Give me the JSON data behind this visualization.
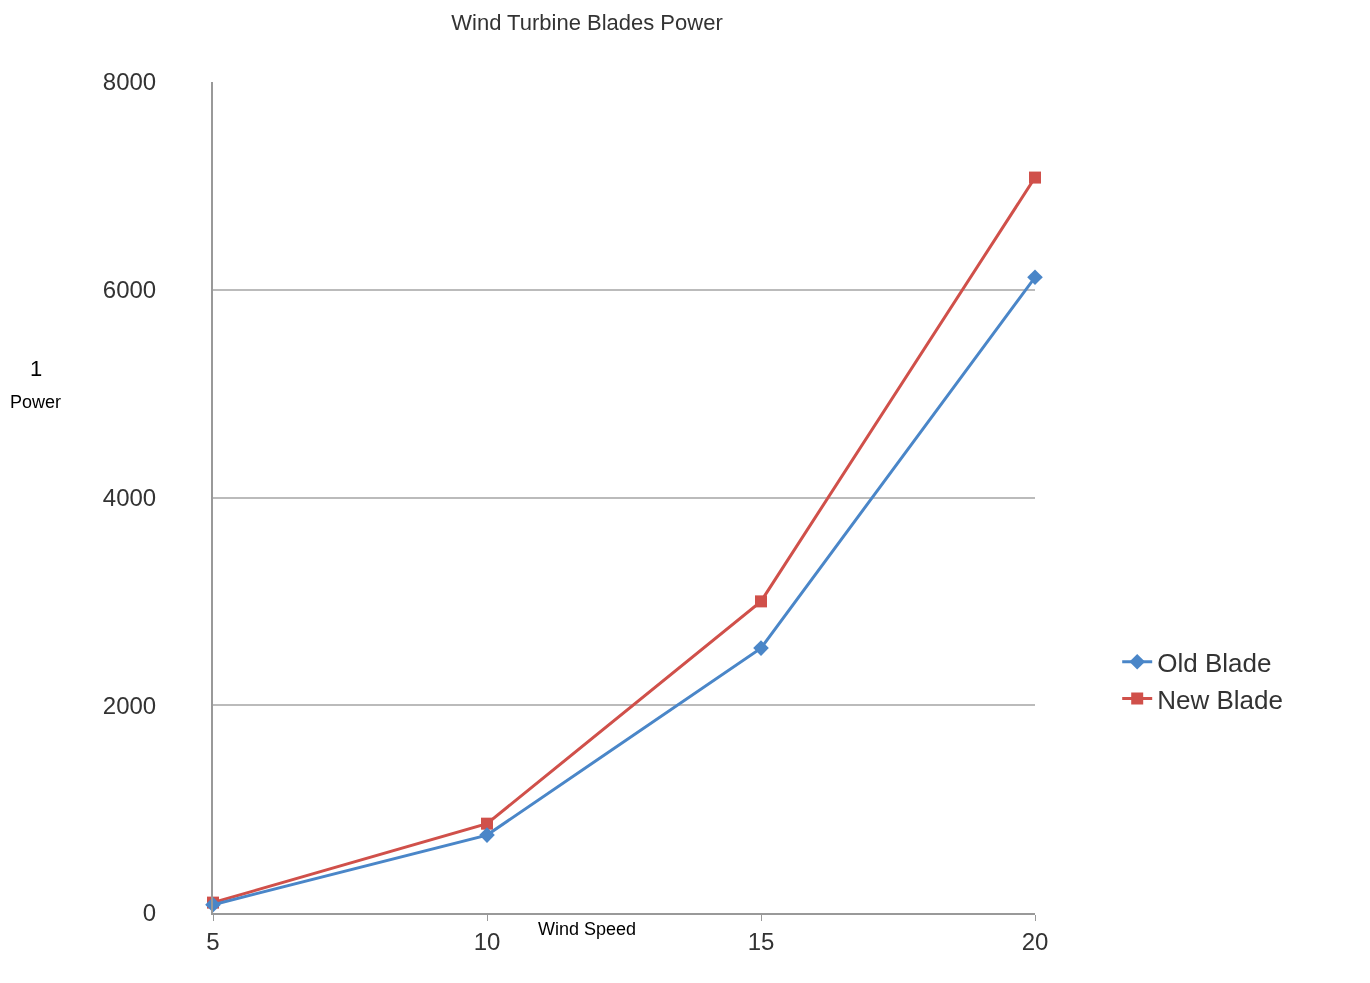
{
  "chart_data": {
    "type": "line",
    "title": "Wind Turbine Blades Power",
    "xlabel": "Wind Speed",
    "ylabel": "Power",
    "annotations": [
      "1"
    ],
    "x": [
      5,
      10,
      15,
      20
    ],
    "series": [
      {
        "name": "Old Blade",
        "color": "#4a86c8",
        "marker": "diamond",
        "values": [
          80,
          750,
          2550,
          6120
        ]
      },
      {
        "name": "New Blade",
        "color": "#d0504a",
        "marker": "square",
        "values": [
          100,
          860,
          3000,
          7080
        ]
      }
    ],
    "xlim": [
      5,
      20
    ],
    "xticks": [
      5,
      10,
      15,
      20
    ],
    "ylim": [
      0,
      8000
    ],
    "yticks": [
      0,
      2000,
      4000,
      6000,
      8000
    ],
    "grid": "y",
    "legend": "right",
    "line_style": "solid"
  }
}
